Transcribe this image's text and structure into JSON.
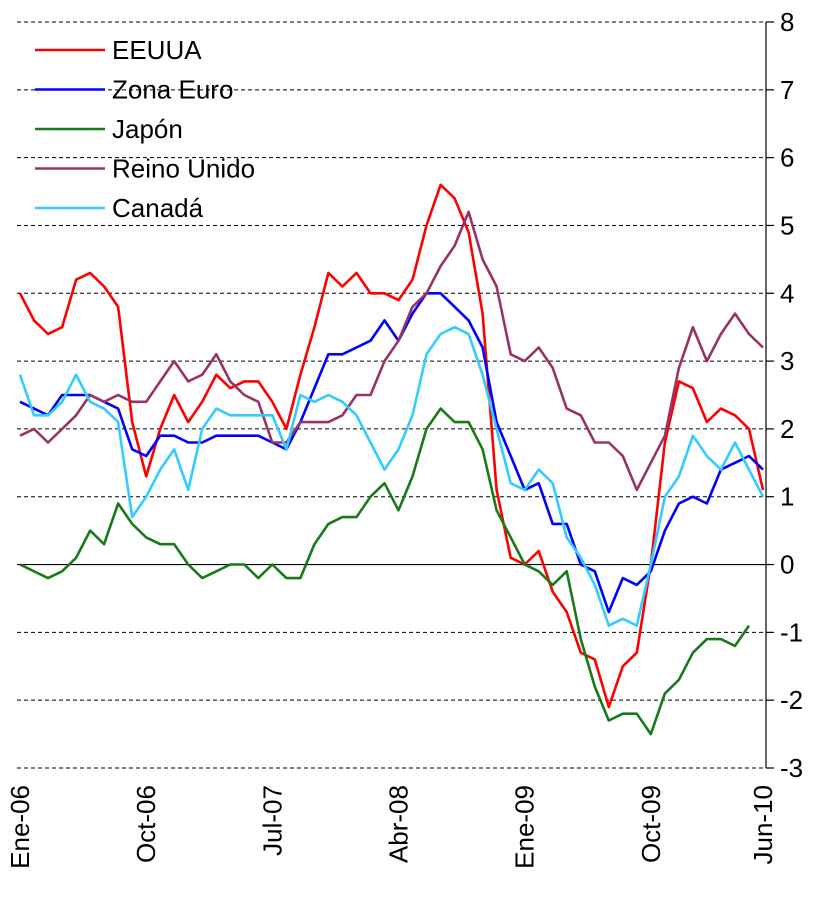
{
  "chart_data": {
    "type": "line",
    "categories": [
      "Ene-06",
      null,
      null,
      null,
      null,
      null,
      null,
      null,
      null,
      "Oct-06",
      null,
      null,
      null,
      null,
      null,
      null,
      null,
      null,
      "Jul-07",
      null,
      null,
      null,
      null,
      null,
      null,
      null,
      null,
      "Abr-08",
      null,
      null,
      null,
      null,
      null,
      null,
      null,
      null,
      "Ene-09",
      null,
      null,
      null,
      null,
      null,
      null,
      null,
      null,
      "Oct-09",
      null,
      null,
      null,
      null,
      null,
      null,
      null,
      "Jun-10"
    ],
    "series": [
      {
        "name": "EEUUA",
        "color": "#ff0000",
        "values": [
          4.0,
          3.6,
          3.4,
          3.5,
          4.2,
          4.3,
          4.1,
          3.8,
          2.1,
          1.3,
          2.0,
          2.5,
          2.1,
          2.4,
          2.8,
          2.6,
          2.7,
          2.7,
          2.4,
          2.0,
          2.8,
          3.5,
          4.3,
          4.1,
          4.3,
          4.0,
          4.0,
          3.9,
          4.2,
          5.0,
          5.6,
          5.4,
          4.9,
          3.7,
          1.1,
          0.1,
          0.0,
          0.2,
          -0.4,
          -0.7,
          -1.3,
          -1.4,
          -2.1,
          -1.5,
          -1.3,
          0.0,
          1.8,
          2.7,
          2.6,
          2.1,
          2.3,
          2.2,
          2.0,
          1.1
        ]
      },
      {
        "name": "Zona Euro",
        "color": "#0000ff",
        "values": [
          2.4,
          2.3,
          2.2,
          2.5,
          2.5,
          2.5,
          2.4,
          2.3,
          1.7,
          1.6,
          1.9,
          1.9,
          1.8,
          1.8,
          1.9,
          1.9,
          1.9,
          1.9,
          1.8,
          1.7,
          2.1,
          2.6,
          3.1,
          3.1,
          3.2,
          3.3,
          3.6,
          3.3,
          3.7,
          4.0,
          4.0,
          3.8,
          3.6,
          3.2,
          2.1,
          1.6,
          1.1,
          1.2,
          0.6,
          0.6,
          0.0,
          -0.1,
          -0.7,
          -0.2,
          -0.3,
          -0.1,
          0.5,
          0.9,
          1.0,
          0.9,
          1.4,
          1.5,
          1.6,
          1.4
        ]
      },
      {
        "name": "Japón",
        "color": "#1a7a1a",
        "values": [
          0.0,
          -0.1,
          -0.2,
          -0.1,
          0.1,
          0.5,
          0.3,
          0.9,
          0.6,
          0.4,
          0.3,
          0.3,
          0.0,
          -0.2,
          -0.1,
          0.0,
          0.0,
          -0.2,
          0.0,
          -0.2,
          -0.2,
          0.3,
          0.6,
          0.7,
          0.7,
          1.0,
          1.2,
          0.8,
          1.3,
          2.0,
          2.3,
          2.1,
          2.1,
          1.7,
          0.8,
          0.4,
          0.0,
          -0.1,
          -0.3,
          -0.1,
          -1.1,
          -1.8,
          -2.3,
          -2.2,
          -2.2,
          -2.5,
          -1.9,
          -1.7,
          -1.3,
          -1.1,
          -1.1,
          -1.2,
          -0.9,
          null
        ]
      },
      {
        "name": "Reino Unido",
        "color": "#993366",
        "values": [
          1.9,
          2.0,
          1.8,
          2.0,
          2.2,
          2.5,
          2.4,
          2.5,
          2.4,
          2.4,
          2.7,
          3.0,
          2.7,
          2.8,
          3.1,
          2.7,
          2.5,
          2.4,
          1.8,
          1.8,
          2.1,
          2.1,
          2.1,
          2.2,
          2.5,
          2.5,
          3.0,
          3.3,
          3.8,
          4.0,
          4.4,
          4.7,
          5.2,
          4.5,
          4.1,
          3.1,
          3.0,
          3.2,
          2.9,
          2.3,
          2.2,
          1.8,
          1.8,
          1.6,
          1.1,
          1.5,
          1.9,
          2.9,
          3.5,
          3.0,
          3.4,
          3.7,
          3.4,
          3.2
        ]
      },
      {
        "name": "Canadá",
        "color": "#33ccff",
        "values": [
          2.8,
          2.2,
          2.2,
          2.4,
          2.8,
          2.4,
          2.3,
          2.1,
          0.7,
          1.0,
          1.4,
          1.7,
          1.1,
          2.0,
          2.3,
          2.2,
          2.2,
          2.2,
          2.2,
          1.7,
          2.5,
          2.4,
          2.5,
          2.4,
          2.2,
          1.8,
          1.4,
          1.7,
          2.2,
          3.1,
          3.4,
          3.5,
          3.4,
          2.8,
          2.0,
          1.2,
          1.1,
          1.4,
          1.2,
          0.4,
          0.1,
          -0.3,
          -0.9,
          -0.8,
          -0.9,
          0.0,
          1.0,
          1.3,
          1.9,
          1.6,
          1.4,
          1.8,
          1.4,
          1.0
        ]
      }
    ],
    "ylim": [
      -3,
      8
    ],
    "yticks": [
      -3,
      -2,
      -1,
      0,
      1,
      2,
      3,
      4,
      5,
      6,
      7,
      8
    ],
    "grid": true,
    "legend": "upper-left"
  }
}
